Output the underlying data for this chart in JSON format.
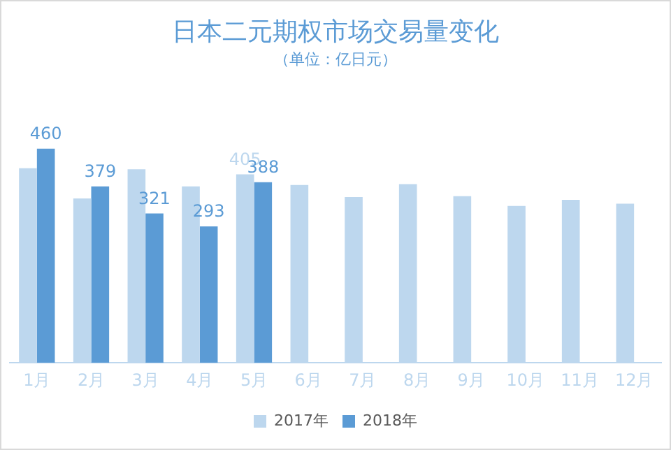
{
  "chart_data": {
    "type": "bar",
    "title": "日本二元期权市场交易量变化",
    "subtitle": "（单位：亿日元）",
    "categories": [
      "1月",
      "2月",
      "3月",
      "4月",
      "5月",
      "6月",
      "7月",
      "8月",
      "9月",
      "10月",
      "11月",
      "12月"
    ],
    "series": [
      {
        "name": "2017年",
        "color": "#bdd7ee",
        "values": [
          418,
          353,
          416,
          379,
          405,
          382,
          356,
          384,
          358,
          337,
          350,
          342
        ],
        "value_labels": [
          null,
          null,
          null,
          null,
          "405",
          null,
          null,
          null,
          null,
          null,
          null,
          null
        ]
      },
      {
        "name": "2018年",
        "color": "#5b9bd5",
        "values": [
          460,
          379,
          321,
          293,
          388,
          null,
          null,
          null,
          null,
          null,
          null,
          null
        ],
        "value_labels": [
          "460",
          "379",
          "321",
          "293",
          "388",
          null,
          null,
          null,
          null,
          null,
          null,
          null
        ]
      }
    ],
    "legend": "bottom",
    "grid": false
  }
}
